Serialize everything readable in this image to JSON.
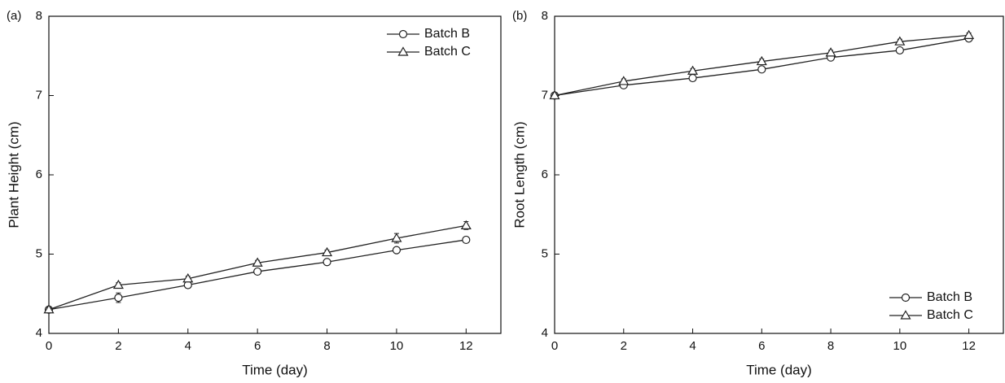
{
  "chart_data": [
    {
      "type": "line",
      "panel_label": "(a)",
      "x_label": "Time (day)",
      "y_label": "Plant Height (cm)",
      "x": [
        0,
        2,
        4,
        6,
        8,
        10,
        12
      ],
      "xlim": [
        0,
        13
      ],
      "xticks": [
        0,
        2,
        4,
        6,
        8,
        10,
        12
      ],
      "ylim": [
        4,
        8
      ],
      "yticks": [
        4,
        5,
        6,
        7,
        8
      ],
      "legend": "upper-right",
      "grid": false,
      "series": [
        {
          "name": "Batch B",
          "color": "#222222",
          "marker": "circle",
          "values": [
            4.3,
            4.45,
            4.61,
            4.78,
            4.9,
            5.05,
            5.18
          ],
          "errors": [
            0.02,
            0.06,
            0.04,
            0.03,
            0.02,
            0.02,
            0.02
          ]
        },
        {
          "name": "Batch C",
          "color": "#222222",
          "marker": "triangle",
          "values": [
            4.3,
            4.61,
            4.69,
            4.89,
            5.02,
            5.2,
            5.36
          ],
          "errors": [
            0.02,
            0.03,
            0.03,
            0.03,
            0.03,
            0.06,
            0.05
          ]
        }
      ]
    },
    {
      "type": "line",
      "panel_label": "(b)",
      "x_label": "Time (day)",
      "y_label": "Root Length (cm)",
      "x": [
        0,
        2,
        4,
        6,
        8,
        10,
        12
      ],
      "xlim": [
        0,
        13
      ],
      "xticks": [
        0,
        2,
        4,
        6,
        8,
        10,
        12
      ],
      "ylim": [
        4,
        8
      ],
      "yticks": [
        4,
        5,
        6,
        7,
        8
      ],
      "legend": "lower-right",
      "grid": false,
      "series": [
        {
          "name": "Batch B",
          "color": "#222222",
          "marker": "circle",
          "values": [
            7.0,
            7.13,
            7.22,
            7.33,
            7.48,
            7.57,
            7.72
          ],
          "errors": [
            0.02,
            0.03,
            0.03,
            0.03,
            0.03,
            0.03,
            0.03
          ]
        },
        {
          "name": "Batch C",
          "color": "#222222",
          "marker": "triangle",
          "values": [
            7.0,
            7.18,
            7.31,
            7.43,
            7.54,
            7.68,
            7.76
          ],
          "errors": [
            0.02,
            0.03,
            0.03,
            0.03,
            0.03,
            0.03,
            0.03
          ]
        }
      ]
    }
  ]
}
